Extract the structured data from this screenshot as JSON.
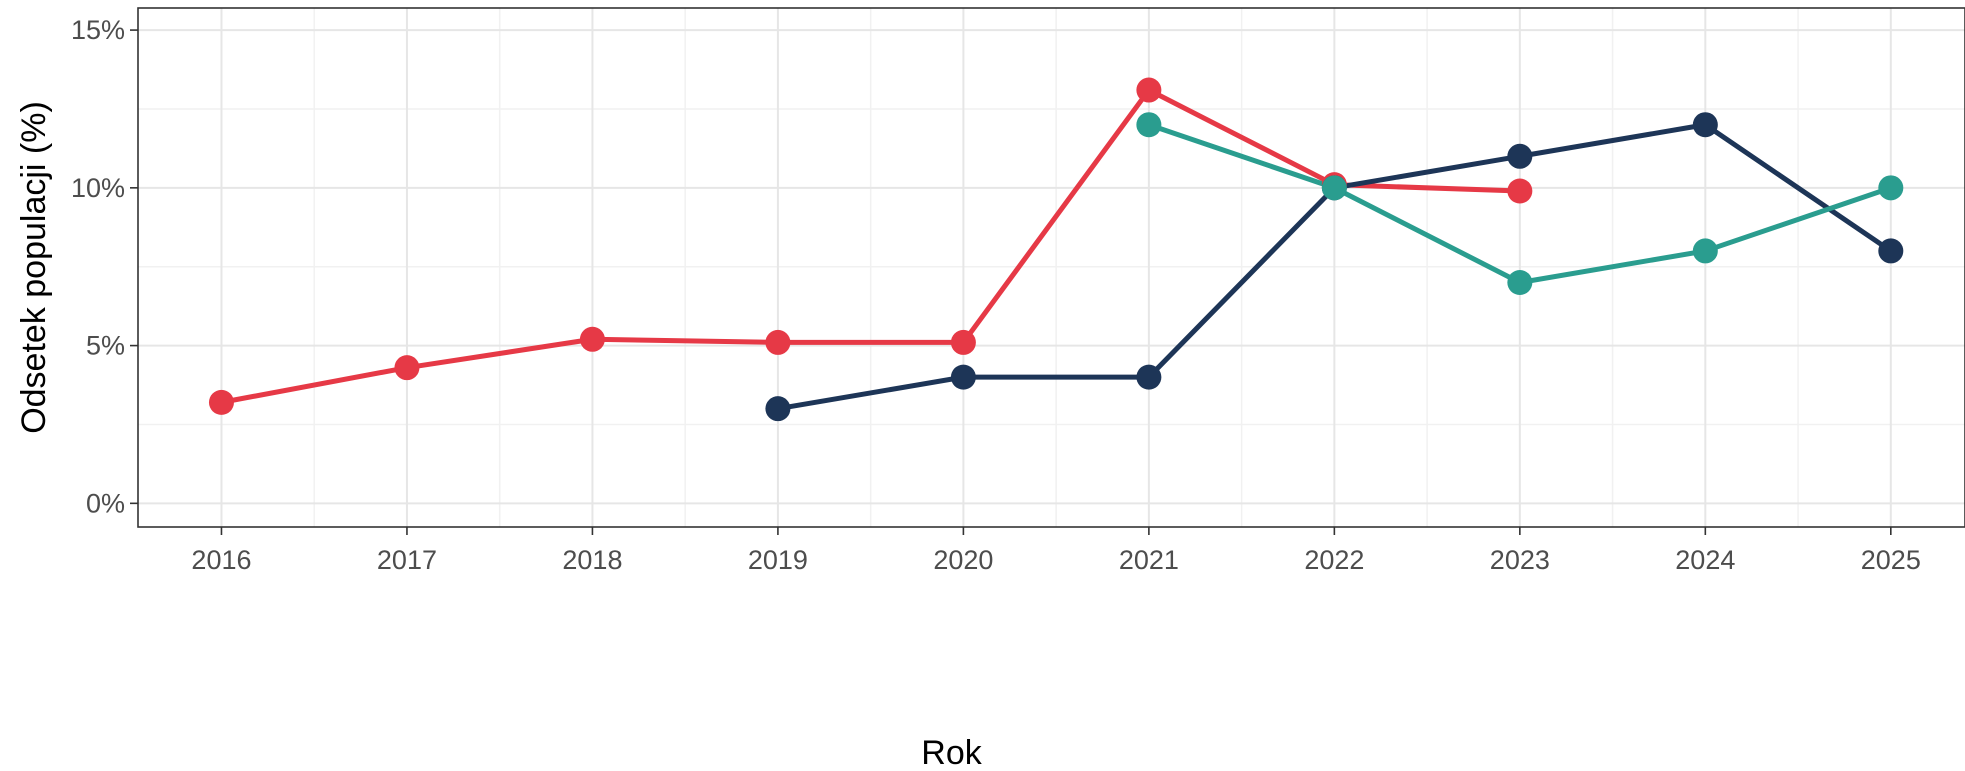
{
  "chart_data": {
    "type": "line",
    "title": "",
    "xlabel": "Rok",
    "ylabel": "Odsetek populacji (%)",
    "x": [
      2016,
      2017,
      2018,
      2019,
      2020,
      2021,
      2022,
      2023,
      2024,
      2025
    ],
    "x_tick_labels": [
      "2016",
      "2017",
      "2018",
      "2019",
      "2020",
      "2021",
      "2022",
      "2023",
      "2024",
      "2025"
    ],
    "y_ticks": [
      0,
      5,
      10,
      15
    ],
    "y_tick_labels": [
      "0%",
      "5%",
      "10%",
      "15%"
    ],
    "xlim": [
      2015.55,
      2025.4
    ],
    "ylim": [
      -0.75,
      15.7
    ],
    "grid": true,
    "legend": "none",
    "series": [
      {
        "color": "#e63946",
        "x": [
          2016,
          2017,
          2018,
          2019,
          2020,
          2021,
          2022,
          2023
        ],
        "values": [
          3.2,
          4.3,
          5.2,
          5.1,
          5.1,
          13.1,
          10.1,
          9.9
        ]
      },
      {
        "color": "#1d3557",
        "x": [
          2019,
          2020,
          2021,
          2022,
          2023,
          2024,
          2025
        ],
        "values": [
          3.0,
          4.0,
          4.0,
          10.0,
          11.0,
          12.0,
          8.0
        ]
      },
      {
        "color": "#2a9d8f",
        "x": [
          2021,
          2022,
          2023,
          2024,
          2025
        ],
        "values": [
          12.0,
          10.0,
          7.0,
          8.0,
          10.0
        ]
      }
    ]
  }
}
